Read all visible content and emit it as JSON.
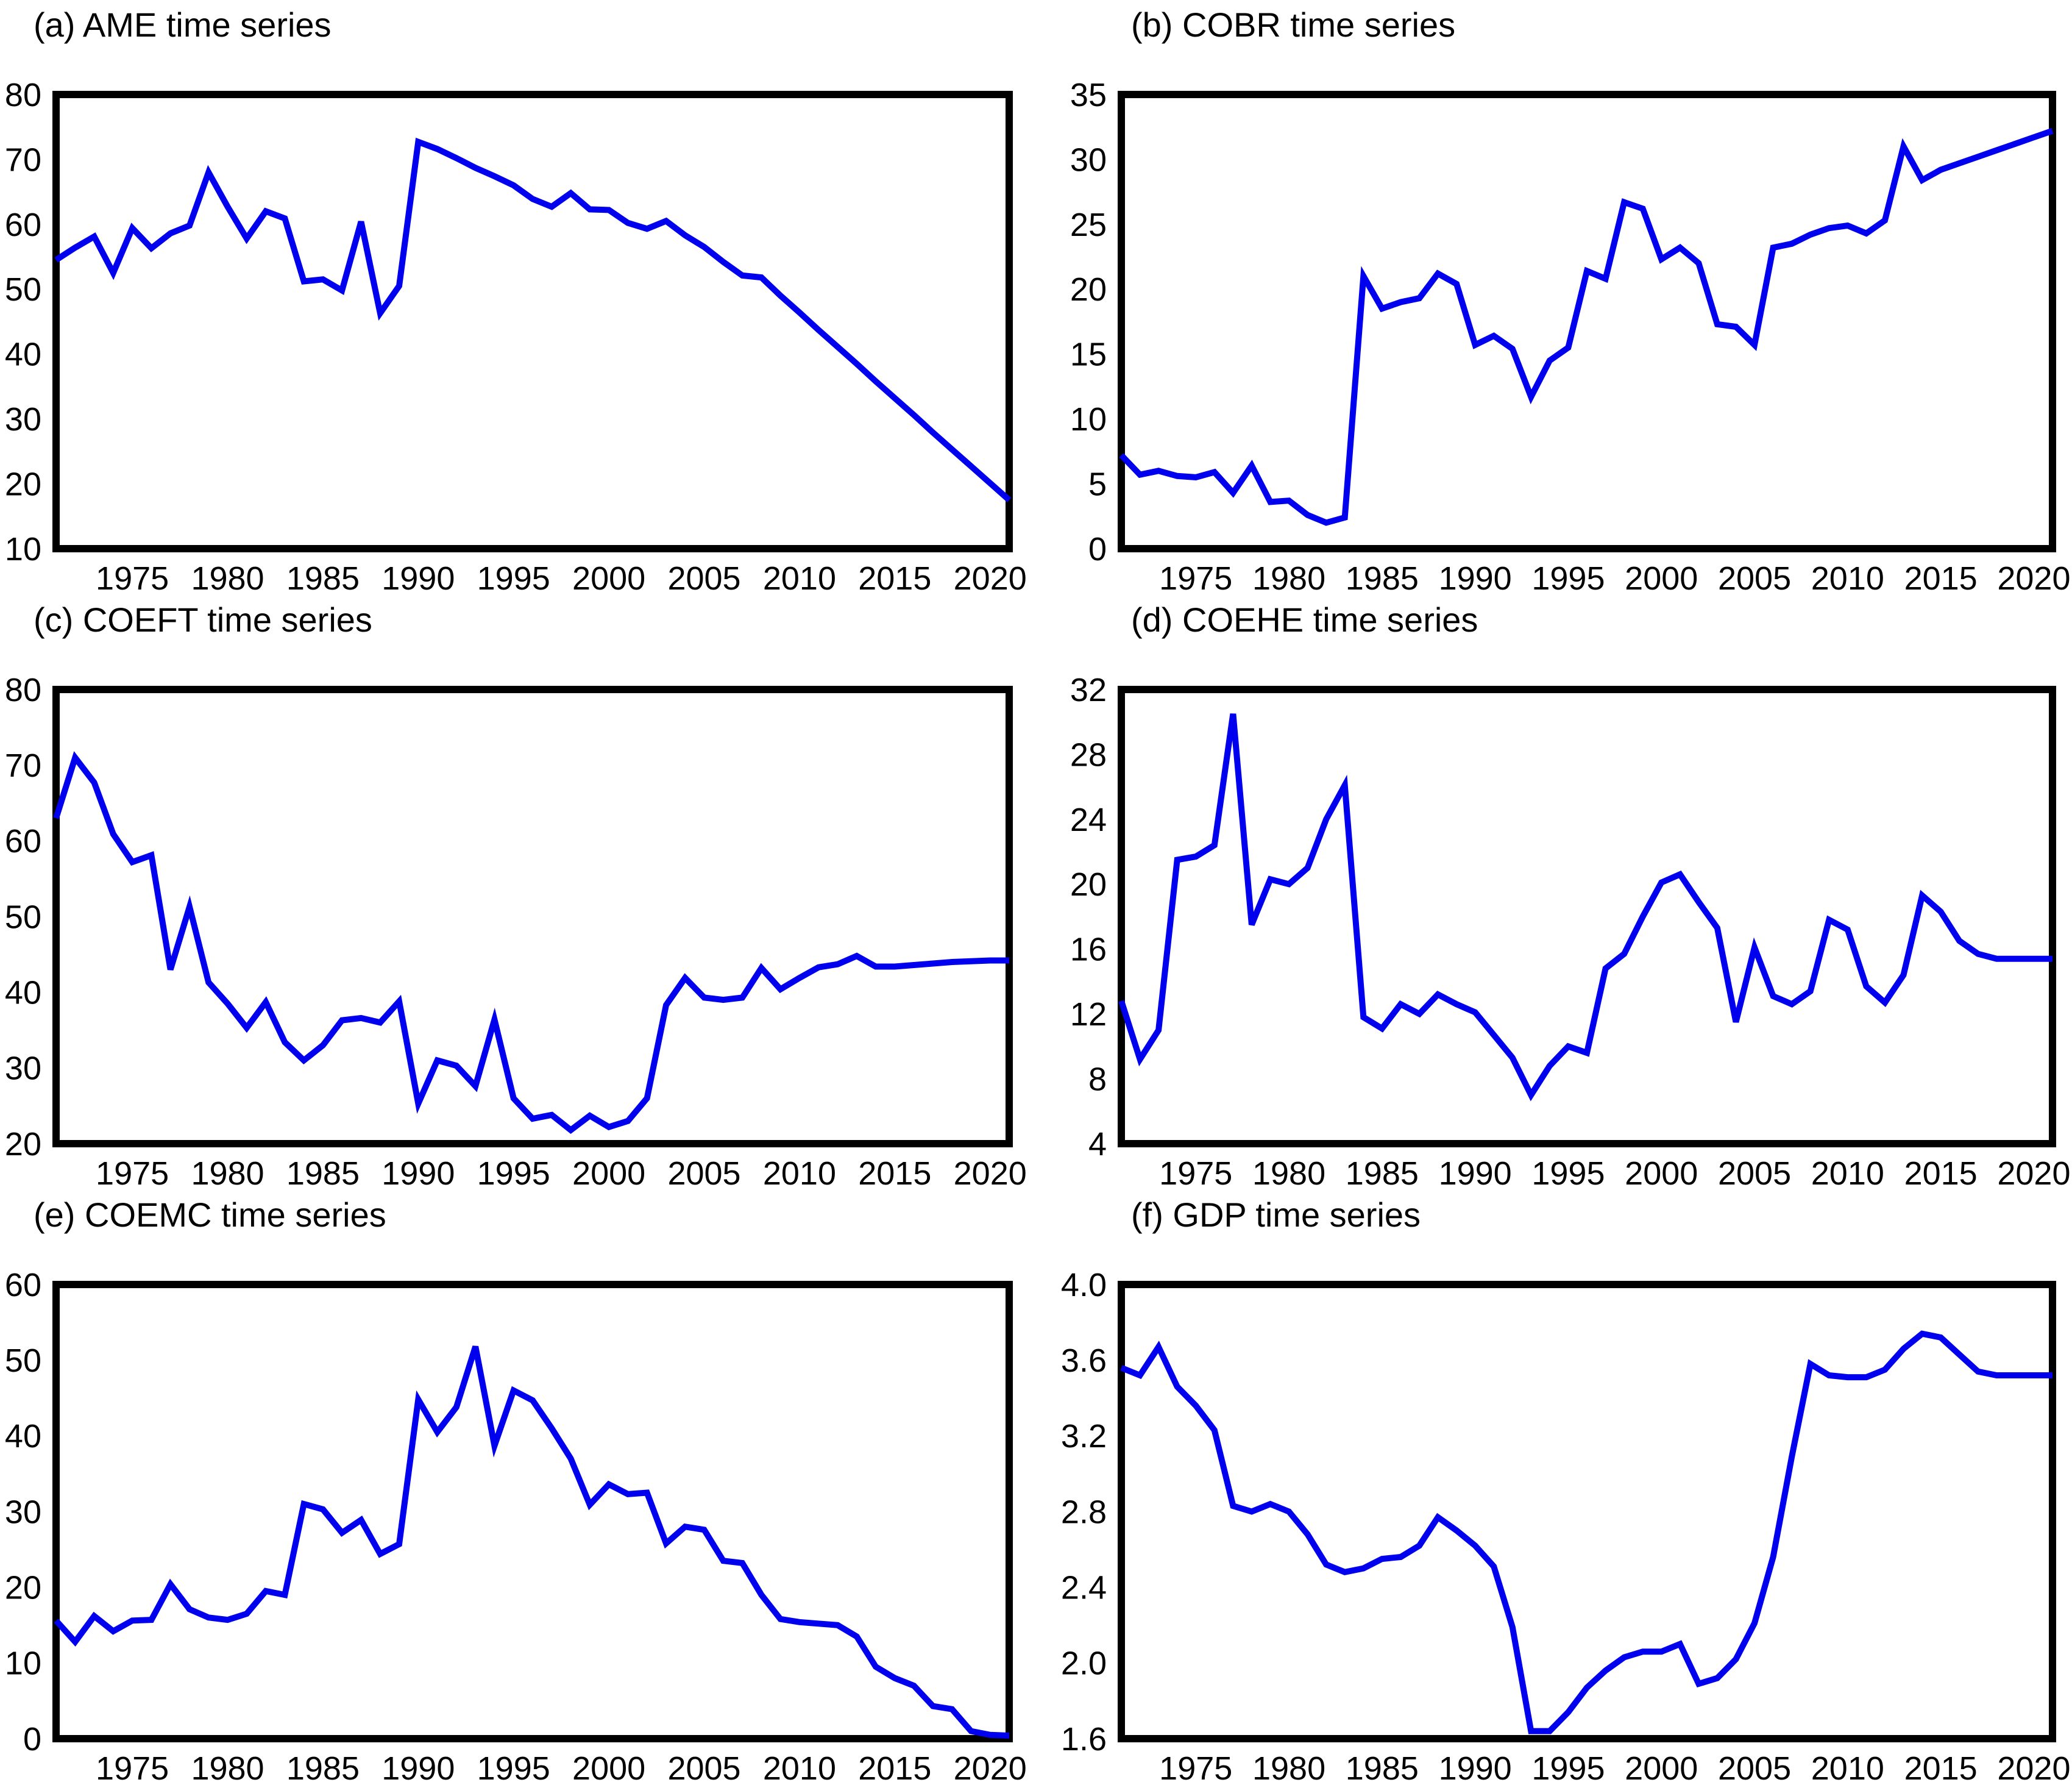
{
  "colors": {
    "line": "#0000EE",
    "axis": "#000000",
    "text": "#000000",
    "background": "#FFFFFF"
  },
  "chart_data": [
    {
      "id": "a",
      "type": "line",
      "title": "(a) AME time series",
      "series_name": "AME",
      "ylim": [
        10,
        80
      ],
      "yticks": [
        80,
        70,
        60,
        50,
        40,
        30,
        20,
        10
      ],
      "ytick_labels": [
        "80",
        "70",
        "60",
        "50",
        "40",
        "30",
        "20",
        "10"
      ],
      "xticks": [
        1975,
        1980,
        1985,
        1990,
        1995,
        2000,
        2005,
        2010,
        2015,
        2020
      ],
      "years": [
        1971,
        1972,
        1973,
        1974,
        1975,
        1976,
        1977,
        1978,
        1979,
        1980,
        1981,
        1982,
        1983,
        1984,
        1985,
        1986,
        1987,
        1988,
        1989,
        1990,
        1991,
        1992,
        1993,
        1994,
        1995,
        1996,
        1997,
        1998,
        1999,
        2000,
        2001,
        2002,
        2003,
        2004,
        2005,
        2006,
        2007,
        2008,
        2009,
        2010,
        2011,
        2012,
        2013,
        2014,
        2015,
        2016,
        2017,
        2018,
        2019,
        2020,
        2021
      ],
      "values": [
        54.5,
        56.4,
        58.1,
        52.5,
        59.4,
        56.3,
        58.6,
        59.8,
        68.0,
        62.7,
        57.8,
        62.0,
        60.9,
        51.2,
        51.5,
        49.8,
        60.4,
        46.3,
        50.5,
        72.7,
        71.6,
        70.2,
        68.7,
        67.4,
        66.0,
        63.9,
        62.7,
        64.8,
        62.3,
        62.2,
        60.2,
        59.3,
        60.5,
        58.3,
        56.5,
        54.2,
        52.1,
        51.8,
        49.0,
        46.4,
        43.7,
        41.1,
        38.5,
        35.8,
        33.2,
        30.6,
        27.9,
        25.3,
        22.7,
        20.1,
        17.5
      ]
    },
    {
      "id": "b",
      "type": "line",
      "title": "(b) COBR time series",
      "series_name": "COBR",
      "ylim": [
        0,
        35
      ],
      "yticks": [
        35,
        30,
        25,
        20,
        15,
        10,
        5,
        0
      ],
      "ytick_labels": [
        "35",
        "30",
        "25",
        "20",
        "15",
        "10",
        "5",
        "0"
      ],
      "xticks": [
        1975,
        1980,
        1985,
        1990,
        1995,
        2000,
        2005,
        2010,
        2015,
        2020
      ],
      "years": [
        1971,
        1972,
        1973,
        1974,
        1975,
        1976,
        1977,
        1978,
        1979,
        1980,
        1981,
        1982,
        1983,
        1984,
        1985,
        1986,
        1987,
        1988,
        1989,
        1990,
        1991,
        1992,
        1993,
        1994,
        1995,
        1996,
        1997,
        1998,
        1999,
        2000,
        2001,
        2002,
        2003,
        2004,
        2005,
        2006,
        2007,
        2008,
        2009,
        2010,
        2011,
        2012,
        2013,
        2014,
        2015,
        2016,
        2017,
        2018,
        2019,
        2020,
        2021
      ],
      "values": [
        7.2,
        5.7,
        6.0,
        5.6,
        5.5,
        5.9,
        4.3,
        6.4,
        3.6,
        3.7,
        2.6,
        2.0,
        2.4,
        21.0,
        18.5,
        19.0,
        19.3,
        21.2,
        20.4,
        15.7,
        16.4,
        15.4,
        11.7,
        14.5,
        15.5,
        21.4,
        20.8,
        26.7,
        26.2,
        22.3,
        23.2,
        22.0,
        17.3,
        17.1,
        15.7,
        23.2,
        23.5,
        24.2,
        24.7,
        24.9,
        24.3,
        25.3,
        31.0,
        28.4,
        29.2,
        29.7,
        30.2,
        30.7,
        31.2,
        31.7,
        32.2
      ]
    },
    {
      "id": "c",
      "type": "line",
      "title": "(c) COEFT time series",
      "series_name": "COEFT",
      "ylim": [
        20,
        80
      ],
      "yticks": [
        80,
        70,
        60,
        50,
        40,
        30,
        20
      ],
      "ytick_labels": [
        "80",
        "70",
        "60",
        "50",
        "40",
        "30",
        "20"
      ],
      "xticks": [
        1975,
        1980,
        1985,
        1990,
        1995,
        2000,
        2005,
        2010,
        2015,
        2020
      ],
      "years": [
        1971,
        1972,
        1973,
        1974,
        1975,
        1976,
        1977,
        1978,
        1979,
        1980,
        1981,
        1982,
        1983,
        1984,
        1985,
        1986,
        1987,
        1988,
        1989,
        1990,
        1991,
        1992,
        1993,
        1994,
        1995,
        1996,
        1997,
        1998,
        1999,
        2000,
        2001,
        2002,
        2003,
        2004,
        2005,
        2006,
        2007,
        2008,
        2009,
        2010,
        2011,
        2012,
        2013,
        2014,
        2015,
        2016,
        2017,
        2018,
        2019,
        2020,
        2021
      ],
      "values": [
        63.0,
        71.0,
        67.7,
        60.9,
        57.2,
        58.1,
        43.0,
        51.3,
        41.3,
        38.5,
        35.3,
        38.7,
        33.4,
        31.0,
        33.0,
        36.3,
        36.6,
        36.0,
        38.8,
        25.3,
        31.0,
        30.3,
        27.6,
        36.4,
        26.0,
        23.3,
        23.8,
        21.8,
        23.7,
        22.2,
        23.0,
        26.0,
        38.3,
        41.9,
        39.3,
        39.0,
        39.3,
        43.2,
        40.4,
        41.9,
        43.3,
        43.7,
        44.8,
        43.4,
        43.4,
        43.6,
        43.8,
        44.0,
        44.1,
        44.2,
        44.2
      ]
    },
    {
      "id": "d",
      "type": "line",
      "title": "(d) COEHE time series",
      "series_name": "COEHE",
      "ylim": [
        4,
        32
      ],
      "yticks": [
        32,
        28,
        24,
        20,
        16,
        12,
        8,
        4
      ],
      "ytick_labels": [
        "32",
        "28",
        "24",
        "20",
        "16",
        "12",
        "8",
        "4"
      ],
      "xticks": [
        1975,
        1980,
        1985,
        1990,
        1995,
        2000,
        2005,
        2010,
        2015,
        2020
      ],
      "years": [
        1971,
        1972,
        1973,
        1974,
        1975,
        1976,
        1977,
        1978,
        1979,
        1980,
        1981,
        1982,
        1983,
        1984,
        1985,
        1986,
        1987,
        1988,
        1989,
        1990,
        1991,
        1992,
        1993,
        1994,
        1995,
        1996,
        1997,
        1998,
        1999,
        2000,
        2001,
        2002,
        2003,
        2004,
        2005,
        2006,
        2007,
        2008,
        2009,
        2010,
        2011,
        2012,
        2013,
        2014,
        2015,
        2016,
        2017,
        2018,
        2019,
        2020,
        2021
      ],
      "values": [
        12.8,
        9.2,
        11.0,
        21.5,
        21.7,
        22.4,
        30.5,
        17.5,
        20.3,
        20.0,
        21.0,
        24.0,
        26.1,
        11.8,
        11.1,
        12.6,
        12.0,
        13.2,
        12.6,
        12.1,
        10.7,
        9.3,
        7.0,
        8.8,
        10.0,
        9.6,
        14.8,
        15.7,
        18.0,
        20.1,
        20.6,
        18.9,
        17.3,
        11.5,
        16.1,
        13.1,
        12.6,
        13.4,
        17.8,
        17.2,
        13.7,
        12.7,
        14.4,
        19.3,
        18.3,
        16.5,
        15.7,
        15.4,
        15.4,
        15.4,
        15.4
      ]
    },
    {
      "id": "e",
      "type": "line",
      "title": "(e) COEMC time series",
      "series_name": "COEMC",
      "ylim": [
        0,
        60
      ],
      "yticks": [
        60,
        50,
        40,
        30,
        20,
        10,
        0
      ],
      "ytick_labels": [
        "60",
        "50",
        "40",
        "30",
        "20",
        "10",
        "0"
      ],
      "xticks": [
        1975,
        1980,
        1985,
        1990,
        1995,
        2000,
        2005,
        2010,
        2015,
        2020
      ],
      "years": [
        1971,
        1972,
        1973,
        1974,
        1975,
        1976,
        1977,
        1978,
        1979,
        1980,
        1981,
        1982,
        1983,
        1984,
        1985,
        1986,
        1987,
        1988,
        1989,
        1990,
        1991,
        1992,
        1993,
        1994,
        1995,
        1996,
        1997,
        1998,
        1999,
        2000,
        2001,
        2002,
        2003,
        2004,
        2005,
        2006,
        2007,
        2008,
        2009,
        2010,
        2011,
        2012,
        2013,
        2014,
        2015,
        2016,
        2017,
        2018,
        2019,
        2020,
        2021
      ],
      "values": [
        15.6,
        12.8,
        16.2,
        14.2,
        15.6,
        15.7,
        20.4,
        17.1,
        16.0,
        15.7,
        16.5,
        19.5,
        19.0,
        31.0,
        30.3,
        27.2,
        28.9,
        24.4,
        25.7,
        44.8,
        40.5,
        43.8,
        51.8,
        38.7,
        46.0,
        44.7,
        41.0,
        37.0,
        30.9,
        33.6,
        32.3,
        32.5,
        25.8,
        28.0,
        27.6,
        23.5,
        23.2,
        19.0,
        15.8,
        15.4,
        15.2,
        15.0,
        13.5,
        9.5,
        8.0,
        7.0,
        4.3,
        3.9,
        1.0,
        0.5,
        0.4
      ]
    },
    {
      "id": "f",
      "type": "line",
      "title": "(f) GDP time series",
      "series_name": "GDP",
      "ylim": [
        1.6,
        4.0
      ],
      "yticks": [
        4.0,
        3.6,
        3.2,
        2.8,
        2.4,
        2.0,
        1.6
      ],
      "ytick_labels": [
        "4.0",
        "3.6",
        "3.2",
        "2.8",
        "2.4",
        "2.0",
        "1.6"
      ],
      "xticks": [
        1975,
        1980,
        1985,
        1990,
        1995,
        2000,
        2005,
        2010,
        2015,
        2020
      ],
      "years": [
        1971,
        1972,
        1973,
        1974,
        1975,
        1976,
        1977,
        1978,
        1979,
        1980,
        1981,
        1982,
        1983,
        1984,
        1985,
        1986,
        1987,
        1988,
        1989,
        1990,
        1991,
        1992,
        1993,
        1994,
        1995,
        1996,
        1997,
        1998,
        1999,
        2000,
        2001,
        2002,
        2003,
        2004,
        2005,
        2006,
        2007,
        2008,
        2009,
        2010,
        2011,
        2012,
        2013,
        2014,
        2015,
        2016,
        2017,
        2018,
        2019,
        2020,
        2021
      ],
      "values": [
        3.56,
        3.52,
        3.67,
        3.46,
        3.36,
        3.23,
        2.83,
        2.8,
        2.84,
        2.8,
        2.68,
        2.52,
        2.48,
        2.5,
        2.55,
        2.56,
        2.62,
        2.77,
        2.7,
        2.62,
        2.51,
        2.19,
        1.64,
        1.64,
        1.74,
        1.87,
        1.96,
        2.03,
        2.06,
        2.06,
        2.1,
        1.89,
        1.92,
        2.02,
        2.21,
        2.56,
        3.09,
        3.58,
        3.52,
        3.51,
        3.51,
        3.55,
        3.66,
        3.74,
        3.72,
        3.63,
        3.54,
        3.52,
        3.52,
        3.52,
        3.52
      ]
    }
  ]
}
